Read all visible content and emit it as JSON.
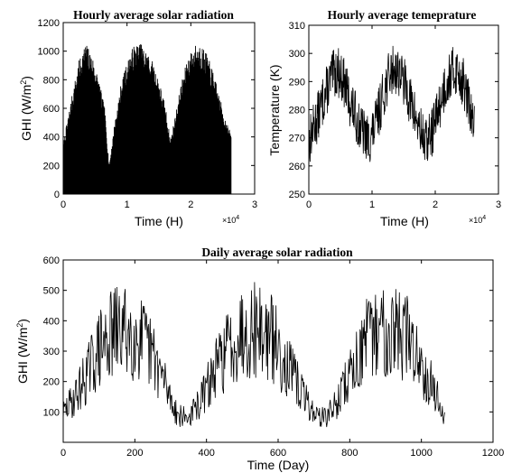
{
  "chart_data": [
    {
      "type": "line",
      "title": "Hourly average solar radiation",
      "xlabel": "Time (H)",
      "ylabel": "GHI (W/m",
      "ylabel_sup": "2",
      "ylabel_close": ")",
      "x_multiplier": "×10",
      "x_multiplier_exp": "4",
      "xlim": [
        0,
        3
      ],
      "ylim": [
        0,
        1200
      ],
      "xticks": [
        0,
        1,
        2,
        3
      ],
      "yticks": [
        0,
        200,
        400,
        600,
        800,
        1000,
        1200
      ],
      "grid": false,
      "series": [
        {
          "x": [
            0,
            0.05,
            0.15,
            0.25,
            0.35,
            0.45,
            0.55,
            0.65,
            0.72,
            0.8,
            0.9,
            1.0,
            1.1,
            1.2,
            1.3,
            1.4,
            1.5,
            1.6,
            1.68,
            1.76,
            1.85,
            1.95,
            2.05,
            2.15,
            2.25,
            2.35,
            2.45,
            2.55,
            2.63
          ],
          "y": [
            340,
            480,
            720,
            940,
            1060,
            980,
            820,
            600,
            200,
            480,
            760,
            920,
            1040,
            1060,
            1010,
            930,
            800,
            620,
            380,
            560,
            780,
            950,
            1040,
            1060,
            980,
            860,
            680,
            520,
            420
          ]
        }
      ]
    },
    {
      "type": "line",
      "title": "Hourly average temeprature",
      "xlabel": "Time (H)",
      "ylabel": "Temperature (K)",
      "x_multiplier": "×10",
      "x_multiplier_exp": "4",
      "xlim": [
        0,
        3
      ],
      "ylim": [
        250,
        310
      ],
      "xticks": [
        0,
        1,
        2,
        3
      ],
      "yticks": [
        250,
        260,
        270,
        280,
        290,
        300,
        310
      ],
      "grid": false,
      "series": [
        {
          "x": [
            0,
            0.05,
            0.15,
            0.25,
            0.35,
            0.45,
            0.55,
            0.65,
            0.75,
            0.85,
            0.95,
            1.05,
            1.15,
            1.25,
            1.35,
            1.45,
            1.55,
            1.65,
            1.75,
            1.85,
            1.95,
            2.05,
            2.15,
            2.25,
            2.35,
            2.45,
            2.55,
            2.62
          ],
          "y": [
            268,
            272,
            278,
            285,
            291,
            294,
            290,
            283,
            277,
            272,
            269,
            274,
            283,
            291,
            295,
            293,
            287,
            280,
            273,
            268,
            272,
            280,
            288,
            293,
            294,
            289,
            280,
            273
          ]
        }
      ]
    },
    {
      "type": "line",
      "title": "Daily average solar radiation",
      "xlabel": "Time (Day)",
      "ylabel": "GHI (W/m",
      "ylabel_sup": "2",
      "ylabel_close": ")",
      "xlim": [
        0,
        1200
      ],
      "ylim": [
        0,
        600
      ],
      "xticks": [
        0,
        200,
        400,
        600,
        800,
        1000,
        1200
      ],
      "yticks": [
        100,
        200,
        300,
        400,
        500,
        600
      ],
      "grid": false,
      "series": [
        {
          "x": [
            0,
            30,
            60,
            100,
            140,
            180,
            220,
            260,
            290,
            320,
            350,
            380,
            420,
            460,
            500,
            540,
            580,
            620,
            660,
            700,
            730,
            760,
            800,
            840,
            880,
            920,
            960,
            1000,
            1040,
            1065
          ],
          "y": [
            120,
            180,
            260,
            380,
            450,
            460,
            420,
            330,
            220,
            110,
            100,
            160,
            280,
            390,
            460,
            470,
            430,
            330,
            220,
            120,
            100,
            150,
            280,
            400,
            460,
            470,
            430,
            330,
            200,
            100
          ]
        }
      ]
    }
  ]
}
